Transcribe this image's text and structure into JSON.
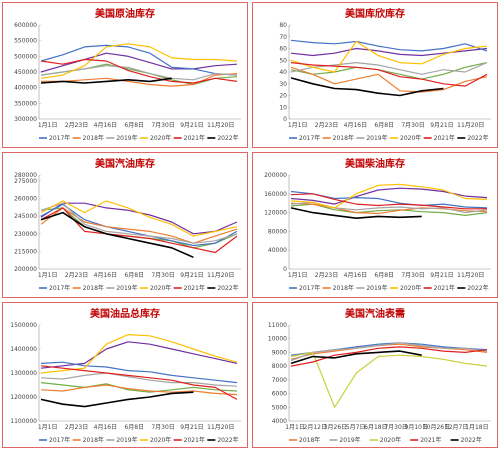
{
  "chart_data": [
    {
      "type": "line",
      "title": "美国原油库存",
      "x_tick_labels": [
        "1月1日",
        "2月23日",
        "4月16日",
        "6月8日",
        "7月30日",
        "9月21日",
        "11月20日"
      ],
      "ylim": [
        300000,
        600000
      ],
      "y_ticks": [
        300000,
        350000,
        400000,
        450000,
        500000,
        550000,
        600000
      ],
      "series": [
        {
          "name": "2017年",
          "color": "#4472c4",
          "values": [
            485000,
            505000,
            530000,
            535000,
            530000,
            510000,
            465000,
            460000,
            445000,
            440000
          ]
        },
        {
          "name": "2018年",
          "color": "#ed7d31",
          "values": [
            420000,
            420000,
            425000,
            430000,
            420000,
            410000,
            405000,
            410000,
            440000,
            445000
          ]
        },
        {
          "name": "2019年",
          "color": "#a5a5a5",
          "values": [
            440000,
            450000,
            460000,
            470000,
            465000,
            445000,
            430000,
            425000,
            445000,
            440000
          ]
        },
        {
          "name": "2020年",
          "color": "#ffc000",
          "values": [
            430000,
            440000,
            470000,
            530000,
            540000,
            530000,
            495000,
            490000,
            490000,
            485000
          ]
        },
        {
          "name": "2021年",
          "color": "#e02020",
          "values": [
            485000,
            475000,
            490000,
            485000,
            455000,
            435000,
            420000,
            415000,
            430000,
            420000
          ]
        },
        {
          "name": "2022年",
          "color": "#000000",
          "values": [
            415000,
            420000,
            415000,
            420000,
            425000,
            420000,
            430000,
            null,
            null,
            null
          ]
        }
      ],
      "extra_series": [
        {
          "color": "#70ad47",
          "values": [
            440000,
            450000,
            460000,
            475000,
            460000,
            445000,
            425000,
            410000,
            430000,
            435000
          ]
        },
        {
          "color": "#7030a0",
          "values": [
            450000,
            470000,
            490000,
            510000,
            500000,
            480000,
            460000,
            460000,
            470000,
            475000
          ]
        }
      ]
    },
    {
      "type": "line",
      "title": "美国库欣库存",
      "x_tick_labels": [
        "1月1日",
        "2月23日",
        "4月16日",
        "6月8日",
        "7月30日",
        "9月21日",
        "11月20日"
      ],
      "ylim": [
        0,
        80
      ],
      "y_ticks": [
        0,
        10,
        20,
        30,
        40,
        50,
        60,
        70,
        80
      ],
      "series": [
        {
          "name": "2017年",
          "color": "#4472c4",
          "values": [
            67,
            65,
            64,
            66,
            62,
            59,
            58,
            60,
            64,
            58
          ]
        },
        {
          "name": "2018年",
          "color": "#ed7d31",
          "values": [
            44,
            38,
            30,
            34,
            38,
            24,
            23,
            25,
            32,
            36
          ]
        },
        {
          "name": "2019年",
          "color": "#a5a5a5",
          "values": [
            40,
            44,
            46,
            48,
            46,
            42,
            38,
            42,
            40,
            48
          ]
        },
        {
          "name": "2020年",
          "color": "#ffc000",
          "values": [
            50,
            44,
            40,
            66,
            54,
            48,
            47,
            55,
            60,
            62
          ]
        },
        {
          "name": "2021年",
          "color": "#e02020",
          "values": [
            48,
            46,
            45,
            44,
            42,
            36,
            34,
            30,
            28,
            38
          ]
        },
        {
          "name": "2022年",
          "color": "#000000",
          "values": [
            35,
            30,
            26,
            25,
            22,
            20,
            24,
            26,
            null,
            null
          ]
        }
      ],
      "extra_series": [
        {
          "color": "#70ad47",
          "values": [
            42,
            38,
            40,
            44,
            42,
            38,
            34,
            38,
            44,
            48
          ]
        },
        {
          "color": "#7030a0",
          "values": [
            56,
            54,
            56,
            60,
            58,
            55,
            54,
            56,
            58,
            60
          ]
        }
      ]
    },
    {
      "type": "line",
      "title": "美国汽油库存",
      "x_tick_labels": [
        "1月1日",
        "2月23日",
        "4月16日",
        "6月8日",
        "7月30日",
        "9月21日",
        "11月20日"
      ],
      "ylim": [
        200000,
        280000
      ],
      "y_ticks": [
        200000,
        205000,
        210000,
        215000,
        220000,
        225000,
        230000,
        235000,
        240000,
        245000,
        250000,
        255000,
        260000,
        265000,
        270000,
        275000,
        280000
      ],
      "series": [
        {
          "name": "2017年",
          "color": "#4472c4",
          "values": [
            245000,
            255000,
            242000,
            236000,
            232000,
            228000,
            224000,
            220000,
            222000,
            232000
          ]
        },
        {
          "name": "2018年",
          "color": "#ed7d31",
          "values": [
            238000,
            252000,
            240000,
            236000,
            234000,
            232000,
            228000,
            222000,
            228000,
            234000
          ]
        },
        {
          "name": "2019年",
          "color": "#a5a5a5",
          "values": [
            250000,
            256000,
            238000,
            232000,
            230000,
            228000,
            226000,
            222000,
            224000,
            230000
          ]
        },
        {
          "name": "2020年",
          "color": "#ffc000",
          "values": [
            248000,
            258000,
            248000,
            258000,
            252000,
            244000,
            238000,
            228000,
            232000,
            236000
          ]
        },
        {
          "name": "2021年",
          "color": "#e02020",
          "values": [
            242000,
            252000,
            232000,
            230000,
            228000,
            226000,
            222000,
            218000,
            214000,
            228000
          ]
        },
        {
          "name": "2022年",
          "color": "#000000",
          "values": [
            242000,
            248000,
            236000,
            230000,
            226000,
            222000,
            218000,
            210000,
            null,
            null
          ]
        }
      ],
      "extra_series": [
        {
          "color": "#70ad47",
          "values": [
            250000,
            252000,
            236000,
            230000,
            228000,
            226000,
            224000,
            218000,
            222000,
            230000
          ]
        },
        {
          "color": "#7030a0",
          "values": [
            244000,
            256000,
            256000,
            252000,
            250000,
            246000,
            240000,
            230000,
            232000,
            240000
          ]
        }
      ]
    },
    {
      "type": "line",
      "title": "美国柴油库存",
      "x_tick_labels": [
        "1月1日",
        "2月23日",
        "4月16日",
        "6月8日",
        "7月30日",
        "9月21日",
        "11月20日"
      ],
      "ylim": [
        0,
        200000
      ],
      "y_ticks": [
        0,
        20000,
        40000,
        60000,
        80000,
        100000,
        120000,
        140000,
        160000,
        180000,
        200000
      ],
      "series": [
        {
          "name": "2017年",
          "color": "#4472c4",
          "values": [
            165000,
            160000,
            150000,
            152000,
            150000,
            140000,
            135000,
            138000,
            132000,
            130000
          ]
        },
        {
          "name": "2018年",
          "color": "#ed7d31",
          "values": [
            140000,
            138000,
            130000,
            120000,
            118000,
            125000,
            130000,
            128000,
            124000,
            122000
          ]
        },
        {
          "name": "2019年",
          "color": "#a5a5a5",
          "values": [
            138000,
            142000,
            130000,
            126000,
            130000,
            132000,
            128000,
            130000,
            120000,
            126000
          ]
        },
        {
          "name": "2020年",
          "color": "#ffc000",
          "values": [
            145000,
            142000,
            130000,
            160000,
            178000,
            180000,
            175000,
            168000,
            150000,
            148000
          ]
        },
        {
          "name": "2021年",
          "color": "#e02020",
          "values": [
            158000,
            160000,
            148000,
            138000,
            135000,
            138000,
            136000,
            132000,
            128000,
            128000
          ]
        },
        {
          "name": "2022年",
          "color": "#000000",
          "values": [
            130000,
            120000,
            114000,
            108000,
            112000,
            110000,
            112000,
            null,
            null,
            null
          ]
        }
      ],
      "extra_series": [
        {
          "color": "#70ad47",
          "values": [
            134000,
            138000,
            126000,
            120000,
            124000,
            126000,
            122000,
            120000,
            114000,
            120000
          ]
        },
        {
          "color": "#7030a0",
          "values": [
            150000,
            146000,
            138000,
            154000,
            168000,
            172000,
            170000,
            165000,
            155000,
            152000
          ]
        }
      ]
    },
    {
      "type": "line",
      "title": "美国油品总库存",
      "x_tick_labels": [
        "1月1日",
        "2月23日",
        "4月16日",
        "6月8日",
        "7月30日",
        "9月21日",
        "11月20日"
      ],
      "ylim": [
        1100000,
        1500000
      ],
      "y_ticks": [
        1100000,
        1200000,
        1300000,
        1400000,
        1500000
      ],
      "series": [
        {
          "name": "2017年",
          "color": "#4472c4",
          "values": [
            1340000,
            1345000,
            1330000,
            1325000,
            1310000,
            1305000,
            1290000,
            1280000,
            1270000,
            1260000
          ]
        },
        {
          "name": "2018年",
          "color": "#ed7d31",
          "values": [
            1230000,
            1225000,
            1240000,
            1250000,
            1235000,
            1225000,
            1220000,
            1225000,
            1215000,
            1210000
          ]
        },
        {
          "name": "2019年",
          "color": "#a5a5a5",
          "values": [
            1280000,
            1275000,
            1290000,
            1300000,
            1285000,
            1270000,
            1260000,
            1260000,
            1250000,
            1245000
          ]
        },
        {
          "name": "2020年",
          "color": "#ffc000",
          "values": [
            1300000,
            1310000,
            1320000,
            1420000,
            1460000,
            1455000,
            1430000,
            1400000,
            1370000,
            1345000
          ]
        },
        {
          "name": "2021年",
          "color": "#e02020",
          "values": [
            1330000,
            1320000,
            1310000,
            1300000,
            1290000,
            1280000,
            1270000,
            1250000,
            1240000,
            1190000
          ]
        },
        {
          "name": "2022年",
          "color": "#000000",
          "values": [
            1190000,
            1170000,
            1160000,
            1175000,
            1190000,
            1200000,
            1215000,
            1220000,
            null,
            null
          ]
        }
      ],
      "extra_series": [
        {
          "color": "#70ad47",
          "values": [
            1260000,
            1250000,
            1240000,
            1255000,
            1230000,
            1220000,
            1230000,
            1240000,
            1230000,
            1225000
          ]
        },
        {
          "color": "#7030a0",
          "values": [
            1320000,
            1330000,
            1340000,
            1400000,
            1430000,
            1420000,
            1400000,
            1380000,
            1360000,
            1340000
          ]
        }
      ]
    },
    {
      "type": "line",
      "title": "美国汽油表需",
      "x_tick_labels": [
        "1月1日",
        "2月12日",
        "3月26日",
        "5月7日",
        "6月18日",
        "7月30日",
        "9月10日",
        "10月26日",
        "12月7日",
        "1月18日"
      ],
      "ylim": [
        4000,
        11000
      ],
      "y_ticks": [
        4000,
        5000,
        6000,
        7000,
        8000,
        9000,
        10000,
        11000
      ],
      "series": [
        {
          "name": "2018年",
          "color": "#ed7d31",
          "values": [
            8500,
            8900,
            9100,
            9300,
            9500,
            9600,
            9400,
            9300,
            9200,
            9000
          ]
        },
        {
          "name": "2019年",
          "color": "#a5a5a5",
          "values": [
            8400,
            9000,
            9200,
            9300,
            9500,
            9700,
            9500,
            9300,
            9300,
            9100
          ]
        },
        {
          "name": "2020年",
          "color": "#c9d13a",
          "values": [
            8700,
            9000,
            5000,
            7500,
            8700,
            8800,
            8700,
            8500,
            8200,
            8000
          ]
        },
        {
          "name": "2021年",
          "color": "#e02020",
          "values": [
            8000,
            8300,
            8800,
            9000,
            9300,
            9400,
            9300,
            9100,
            9000,
            9200
          ]
        },
        {
          "name": "2022年",
          "color": "#000000",
          "values": [
            8200,
            8700,
            8600,
            8900,
            9000,
            9100,
            8800,
            null,
            null,
            null
          ]
        }
      ],
      "extra_series": [
        {
          "color": "#4472c4",
          "values": [
            8800,
            9000,
            9200,
            9400,
            9600,
            9700,
            9600,
            9400,
            9300,
            9200
          ]
        }
      ]
    }
  ]
}
